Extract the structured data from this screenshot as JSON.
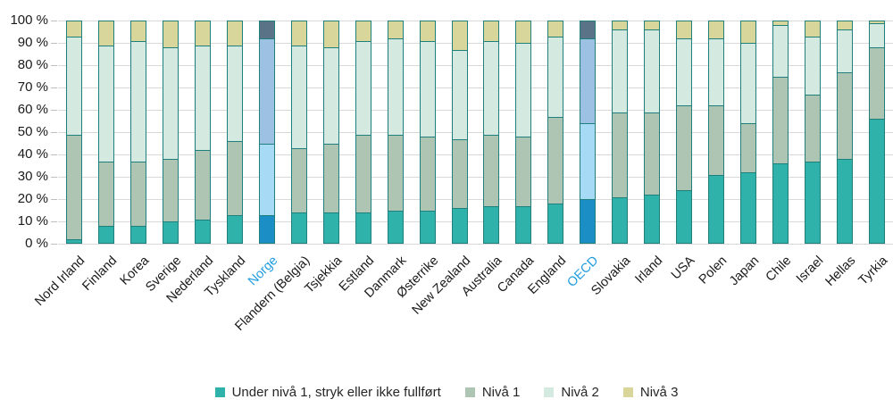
{
  "chart_data": {
    "type": "bar",
    "stacked": true,
    "orientation": "vertical",
    "unit": "%",
    "title": "",
    "xlabel": "",
    "ylabel": "",
    "ylim": [
      0,
      100
    ],
    "grid": true,
    "legend_position": "bottom",
    "y_ticks": [
      "0 %",
      "10 %",
      "20 %",
      "30 %",
      "40 %",
      "50 %",
      "60 %",
      "70 %",
      "80 %",
      "90 %",
      "100 %"
    ],
    "categories": [
      "Nord Irland",
      "Finland",
      "Korea",
      "Sverige",
      "Nederland",
      "Tyskland",
      "Norge",
      "Flandern (Belgia)",
      "Tsjekkia",
      "Estland",
      "Danmark",
      "Østerrike",
      "New Zealand",
      "Australia",
      "Canada",
      "England",
      "OECD",
      "Slovakia",
      "Irland",
      "USA",
      "Polen",
      "Japan",
      "Chile",
      "Israel",
      "Hellas",
      "Tyrkia"
    ],
    "series": [
      {
        "name": "Under nivå 1, stryk eller ikke fullført",
        "color": "#2eb2a9",
        "highlight_color": "#1b8ec6",
        "values": [
          2,
          8,
          8,
          10,
          11,
          13,
          13,
          14,
          14,
          14,
          15,
          15,
          16,
          17,
          17,
          18,
          20,
          21,
          22,
          24,
          31,
          32,
          36,
          37,
          38,
          56
        ]
      },
      {
        "name": "Nivå 1",
        "color": "#aec5b3",
        "highlight_color": "#a7daf4",
        "values": [
          47,
          29,
          29,
          28,
          31,
          33,
          32,
          29,
          31,
          35,
          34,
          33,
          31,
          32,
          31,
          39,
          34,
          38,
          37,
          38,
          31,
          22,
          39,
          30,
          39,
          32
        ]
      },
      {
        "name": "Nivå 2",
        "color": "#d4e9e0",
        "highlight_color": "#9cc1e2",
        "values": [
          44,
          52,
          54,
          50,
          47,
          43,
          47,
          46,
          43,
          42,
          43,
          43,
          40,
          42,
          42,
          36,
          38,
          37,
          37,
          30,
          30,
          36,
          23,
          26,
          19,
          11
        ]
      },
      {
        "name": "Nivå 3",
        "color": "#d9d69b",
        "highlight_color": "#5a7386",
        "values": [
          7,
          11,
          9,
          12,
          11,
          11,
          8,
          11,
          12,
          9,
          8,
          9,
          13,
          9,
          10,
          7,
          8,
          4,
          4,
          8,
          8,
          10,
          2,
          7,
          4,
          1
        ]
      }
    ],
    "highlighted_categories": [
      "Norge",
      "OECD"
    ],
    "highlight_label_color": "#1f9cdf",
    "bar_border_color": "#1e7f7c",
    "gridline_color": "#d9d9d9",
    "axis_label_color": "#1a1a1a"
  }
}
